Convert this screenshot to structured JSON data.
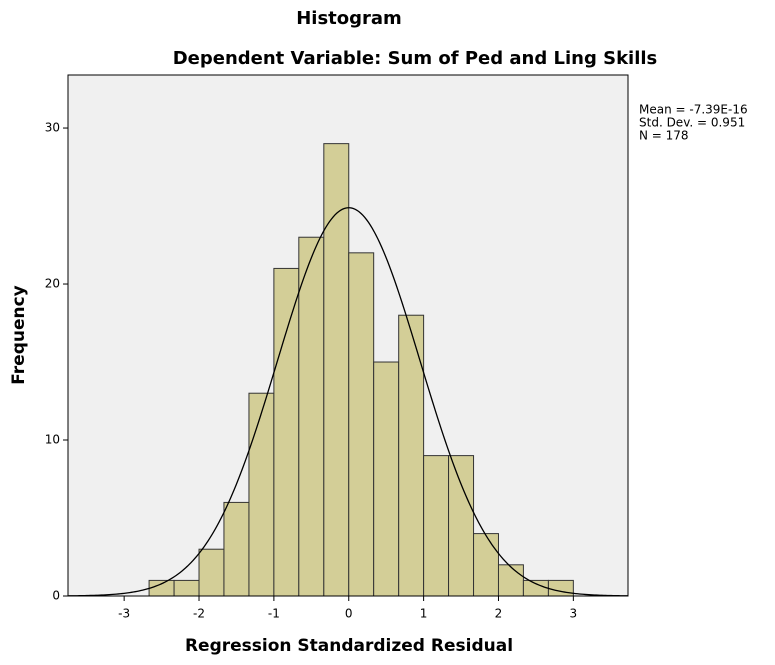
{
  "chart_data": {
    "type": "histogram",
    "title": "Histogram",
    "subtitle": "Dependent Variable: Sum of Ped and Ling Skills",
    "x_label": "Regression Standardized Residual",
    "y_label": "Frequency",
    "bins": [
      -2.667,
      -2.333,
      -2,
      -1.667,
      -1.333,
      -1,
      -0.667,
      -0.333,
      0,
      0.333,
      0.667,
      1,
      1.333,
      1.667,
      2,
      2.333,
      2.667,
      3
    ],
    "values": [
      1,
      1,
      3,
      6,
      13,
      21,
      23,
      29,
      22,
      15,
      18,
      9,
      9,
      4,
      2,
      1,
      1
    ],
    "color": "#d3ce97",
    "xlim": [
      -3.75,
      3.73
    ],
    "ylim": [
      0,
      33.4
    ],
    "xticks": [
      -3,
      -2,
      -1,
      0,
      1,
      2,
      3
    ],
    "yticks": [
      0,
      10,
      20,
      30
    ],
    "stats": [
      {
        "value": -7.39e-16,
        "label": "Mean = -7.39E-16"
      },
      {
        "value": 0.951,
        "label": "Std. Dev. = 0.951"
      },
      {
        "value": 178,
        "label": "N = 178"
      }
    ]
  }
}
